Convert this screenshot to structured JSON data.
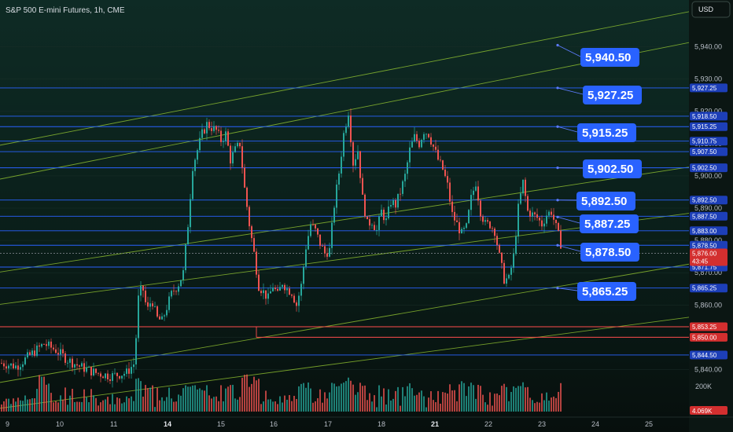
{
  "title": "S&P 500 E-mini Futures, 1h, CME",
  "currency_button": "USD",
  "colors": {
    "background_top": "#0d2a24",
    "background_bottom": "#07100e",
    "up_candle": "#26a69a",
    "down_candle": "#ef5350",
    "level_line": "#2962ff",
    "red_level": "#ff4d4d",
    "channel_line": "#9acd32",
    "callout": "#2962ff"
  },
  "chart_data": {
    "type": "candlestick",
    "symbol": "S&P 500 E-mini Futures",
    "interval": "1h",
    "exchange": "CME",
    "y_range": [
      5835,
      5945
    ],
    "y_ticks": [
      "5,940.00",
      "5,930.00",
      "5,920.00",
      "5,910.00",
      "5,900.00",
      "5,890.00",
      "5,880.00",
      "5,870.00",
      "5,860.00",
      "5,840.00"
    ],
    "x_ticks": [
      {
        "label": "9",
        "bold": false
      },
      {
        "label": "10",
        "bold": false
      },
      {
        "label": "11",
        "bold": false
      },
      {
        "label": "14",
        "bold": true
      },
      {
        "label": "15",
        "bold": false
      },
      {
        "label": "16",
        "bold": false
      },
      {
        "label": "17",
        "bold": false
      },
      {
        "label": "18",
        "bold": false
      },
      {
        "label": "21",
        "bold": true
      },
      {
        "label": "22",
        "bold": false
      },
      {
        "label": "23",
        "bold": false
      },
      {
        "label": "24",
        "bold": false
      },
      {
        "label": "25",
        "bold": false
      }
    ],
    "path_points": [
      [
        0,
        5842
      ],
      [
        20,
        5841
      ],
      [
        40,
        5845
      ],
      [
        55,
        5848
      ],
      [
        70,
        5846
      ],
      [
        85,
        5843
      ],
      [
        100,
        5841
      ],
      [
        120,
        5839
      ],
      [
        140,
        5838
      ],
      [
        160,
        5839
      ],
      [
        170,
        5842
      ],
      [
        175,
        5862
      ],
      [
        180,
        5866
      ],
      [
        186,
        5858
      ],
      [
        192,
        5862
      ],
      [
        198,
        5856
      ],
      [
        205,
        5855
      ],
      [
        212,
        5860
      ],
      [
        218,
        5864
      ],
      [
        225,
        5866
      ],
      [
        232,
        5870
      ],
      [
        238,
        5885
      ],
      [
        244,
        5903
      ],
      [
        250,
        5908
      ],
      [
        256,
        5913
      ],
      [
        262,
        5916
      ],
      [
        268,
        5915
      ],
      [
        274,
        5914
      ],
      [
        280,
        5911
      ],
      [
        286,
        5913
      ],
      [
        292,
        5905
      ],
      [
        298,
        5908
      ],
      [
        304,
        5910
      ],
      [
        310,
        5896
      ],
      [
        316,
        5885
      ],
      [
        322,
        5876
      ],
      [
        328,
        5866
      ],
      [
        334,
        5864
      ],
      [
        340,
        5862
      ],
      [
        346,
        5866
      ],
      [
        352,
        5863
      ],
      [
        358,
        5867
      ],
      [
        364,
        5865
      ],
      [
        370,
        5864
      ],
      [
        376,
        5860
      ],
      [
        382,
        5866
      ],
      [
        388,
        5878
      ],
      [
        394,
        5885
      ],
      [
        400,
        5883
      ],
      [
        406,
        5879
      ],
      [
        412,
        5876
      ],
      [
        418,
        5877
      ],
      [
        424,
        5891
      ],
      [
        430,
        5901
      ],
      [
        436,
        5913
      ],
      [
        442,
        5920
      ],
      [
        448,
        5904
      ],
      [
        454,
        5908
      ],
      [
        460,
        5893
      ],
      [
        466,
        5885
      ],
      [
        472,
        5886
      ],
      [
        478,
        5883
      ],
      [
        484,
        5889
      ],
      [
        490,
        5886
      ],
      [
        496,
        5892
      ],
      [
        502,
        5891
      ],
      [
        508,
        5895
      ],
      [
        514,
        5900
      ],
      [
        520,
        5908
      ],
      [
        526,
        5912
      ],
      [
        532,
        5910
      ],
      [
        538,
        5914
      ],
      [
        544,
        5913
      ],
      [
        550,
        5909
      ],
      [
        556,
        5905
      ],
      [
        562,
        5902
      ],
      [
        568,
        5897
      ],
      [
        574,
        5888
      ],
      [
        580,
        5885
      ],
      [
        586,
        5882
      ],
      [
        592,
        5884
      ],
      [
        598,
        5893
      ],
      [
        604,
        5898
      ],
      [
        610,
        5889
      ],
      [
        616,
        5885
      ],
      [
        622,
        5885
      ],
      [
        628,
        5883
      ],
      [
        634,
        5875
      ],
      [
        640,
        5868
      ],
      [
        646,
        5868
      ],
      [
        652,
        5875
      ],
      [
        658,
        5890
      ],
      [
        664,
        5898
      ],
      [
        670,
        5889
      ],
      [
        676,
        5888
      ],
      [
        682,
        5887
      ],
      [
        688,
        5885
      ],
      [
        694,
        5888
      ],
      [
        700,
        5889
      ],
      [
        706,
        5884
      ],
      [
        712,
        5879
      ]
    ],
    "levels": [
      {
        "label": "5,927.25",
        "value": 5927.25,
        "color": "blue"
      },
      {
        "label": "5,918.50",
        "value": 5918.5,
        "color": "blue"
      },
      {
        "label": "5,915.25",
        "value": 5915.25,
        "color": "blue"
      },
      {
        "label": "5,910.75",
        "value": 5910.75,
        "color": "blue"
      },
      {
        "label": "5,907.50",
        "value": 5907.5,
        "color": "blue"
      },
      {
        "label": "5,902.50",
        "value": 5902.5,
        "color": "blue"
      },
      {
        "label": "5,892.50",
        "value": 5892.5,
        "color": "blue"
      },
      {
        "label": "5,887.50",
        "value": 5887.5,
        "color": "blue"
      },
      {
        "label": "5,883.00",
        "value": 5883.0,
        "color": "blue"
      },
      {
        "label": "5,878.50",
        "value": 5878.5,
        "color": "blue"
      },
      {
        "label": "5,871.75",
        "value": 5871.75,
        "color": "blue"
      },
      {
        "label": "5,865.25",
        "value": 5865.25,
        "color": "blue"
      },
      {
        "label": "5,853.25",
        "value": 5853.25,
        "color": "red"
      },
      {
        "label": "5,850.00",
        "value": 5850.0,
        "color": "red"
      },
      {
        "label": "5,844.50",
        "value": 5844.5,
        "color": "blue"
      }
    ],
    "current_price": {
      "label": "5,876.00",
      "countdown": "43:45",
      "value": 5876.0
    },
    "callouts": [
      {
        "label": "5,940.50",
        "value": 5940.5
      },
      {
        "label": "5,927.25",
        "value": 5927.25
      },
      {
        "label": "5,915.25",
        "value": 5915.25
      },
      {
        "label": "5,902.50",
        "value": 5902.5
      },
      {
        "label": "5,892.50",
        "value": 5892.5
      },
      {
        "label": "5,887.25",
        "value": 5887.25
      },
      {
        "label": "5,878.50",
        "value": 5878.5
      },
      {
        "label": "5,865.25",
        "value": 5865.25
      }
    ],
    "channel_lines": [
      {
        "from": [
          0,
          5909.5
        ],
        "to": [
          932,
          5953.5
        ]
      },
      {
        "from": [
          0,
          5899.0
        ],
        "to": [
          932,
          5944.0
        ]
      },
      {
        "from": [
          0,
          5870.2
        ],
        "to": [
          932,
          5904.8
        ]
      },
      {
        "from": [
          0,
          5860.2
        ],
        "to": [
          932,
          5890.2
        ]
      },
      {
        "from": [
          0,
          5836.0
        ],
        "to": [
          932,
          5875.0
        ]
      },
      {
        "from": [
          0,
          5828.0
        ],
        "to": [
          932,
          5858.0
        ]
      }
    ],
    "volume": {
      "label": "200K",
      "current_label": "4.069K",
      "max": 260000
    }
  }
}
